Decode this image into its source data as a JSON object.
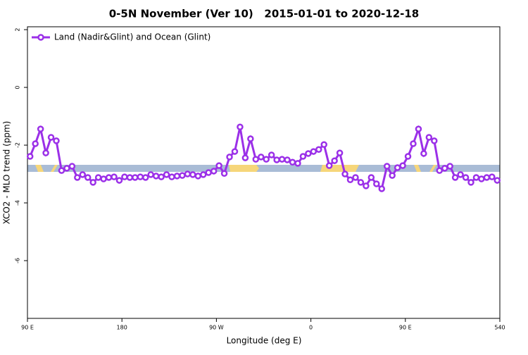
{
  "chart_data": {
    "type": "line",
    "title": "0-5N November (Ver 10)   2015-01-01 to 2020-12-18",
    "xlabel": "Longitude (deg E)",
    "ylabel": "XCO2 - MLO trend (ppm)",
    "x": [
      92.5,
      97.5,
      102.5,
      107.5,
      112.5,
      117.5,
      122.5,
      127.5,
      132.5,
      137.5,
      142.5,
      147.5,
      152.5,
      157.5,
      162.5,
      167.5,
      172.5,
      177.5,
      182.5,
      187.5,
      192.5,
      197.5,
      202.5,
      207.5,
      212.5,
      217.5,
      222.5,
      227.5,
      232.5,
      237.5,
      242.5,
      247.5,
      252.5,
      257.5,
      262.5,
      267.5,
      272.5,
      277.5,
      282.5,
      287.5,
      292.5,
      297.5,
      302.5,
      307.5,
      312.5,
      317.5,
      322.5,
      327.5,
      332.5,
      337.5,
      342.5,
      347.5,
      352.5,
      357.5,
      362.5,
      367.5,
      372.5,
      377.5,
      382.5,
      387.5,
      392.5,
      397.5,
      402.5,
      407.5,
      412.5,
      417.5,
      422.5,
      427.5,
      432.5,
      437.5,
      442.5,
      447.5,
      452.5,
      457.5,
      462.5,
      467.5,
      472.5,
      477.5,
      482.5,
      487.5,
      492.5,
      497.5,
      502.5,
      507.5,
      512.5,
      517.5,
      522.5,
      527.5,
      532.5,
      537.5
    ],
    "series": [
      {
        "name": "Land (Nadir&Glint) and Ocean (Glint)",
        "color": "#9b30e8",
        "values": [
          -2.39,
          -1.95,
          -1.44,
          -2.27,
          -1.73,
          -1.85,
          -2.88,
          -2.8,
          -2.73,
          -3.12,
          -3.02,
          -3.12,
          -3.29,
          -3.12,
          -3.17,
          -3.12,
          -3.1,
          -3.22,
          -3.1,
          -3.12,
          -3.12,
          -3.1,
          -3.12,
          -3.02,
          -3.07,
          -3.1,
          -3.02,
          -3.1,
          -3.07,
          -3.05,
          -3.0,
          -3.02,
          -3.07,
          -3.02,
          -2.95,
          -2.9,
          -2.71,
          -2.98,
          -2.41,
          -2.22,
          -1.37,
          -2.44,
          -1.78,
          -2.49,
          -2.41,
          -2.49,
          -2.34,
          -2.51,
          -2.49,
          -2.51,
          -2.59,
          -2.63,
          -2.39,
          -2.29,
          -2.22,
          -2.15,
          -1.98,
          -2.71,
          -2.54,
          -2.27,
          -3.0,
          -3.2,
          -3.12,
          -3.29,
          -3.41,
          -3.12,
          -3.34,
          -3.51,
          -2.73,
          -3.05,
          -2.78,
          -2.71,
          -2.39,
          -1.95,
          -1.44,
          -2.29,
          -1.73,
          -1.85,
          -2.88,
          -2.8,
          -2.73,
          -3.12,
          -3.02,
          -3.12,
          -3.29,
          -3.12,
          -3.17,
          -3.12,
          -3.1,
          -3.22
        ]
      }
    ],
    "xlim": [
      90,
      540
    ],
    "xticks": [
      {
        "value": 90,
        "label": "90 E"
      },
      180,
      {
        "value": 270,
        "label": "90 W"
      },
      {
        "value": 360,
        "label": "0"
      },
      {
        "value": 450,
        "label": "90 E"
      },
      540
    ],
    "ylim": [
      -8,
      2.1
    ],
    "yticks": [
      -6,
      -4,
      -2,
      0,
      2
    ],
    "legend": "top-left"
  }
}
